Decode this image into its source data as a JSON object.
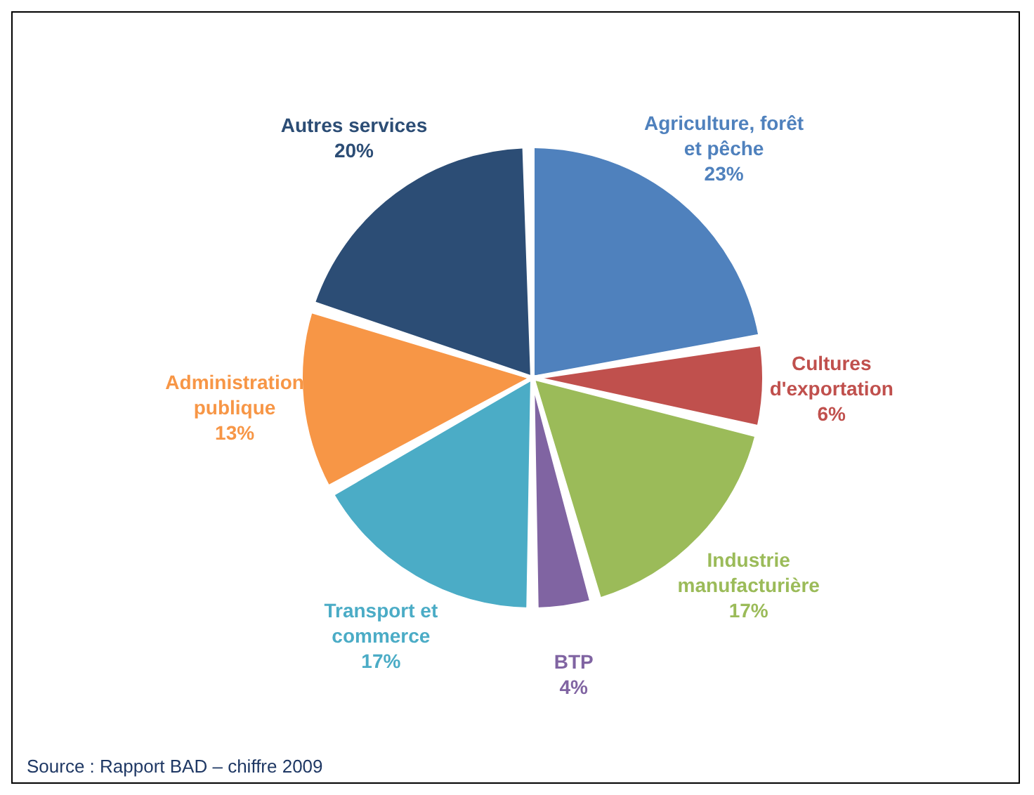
{
  "chart_data": {
    "type": "pie",
    "categories": [
      "Agriculture, forêt et pêche",
      "Cultures d'exportation",
      "Industrie manufacturière",
      "BTP",
      "Transport et commerce",
      "Administration publique",
      "Autres services"
    ],
    "values": [
      23,
      6,
      17,
      4,
      17,
      13,
      20
    ],
    "value_labels": [
      "23%",
      "6%",
      "17%",
      "4%",
      "17%",
      "13%",
      "20%"
    ],
    "colors": [
      "#4f81bd",
      "#c0504d",
      "#9bbb59",
      "#8064a2",
      "#4bacc6",
      "#f79646",
      "#2c4d75"
    ],
    "annotations": [
      "Source : Rapport BAD – chiffre 2009"
    ]
  }
}
